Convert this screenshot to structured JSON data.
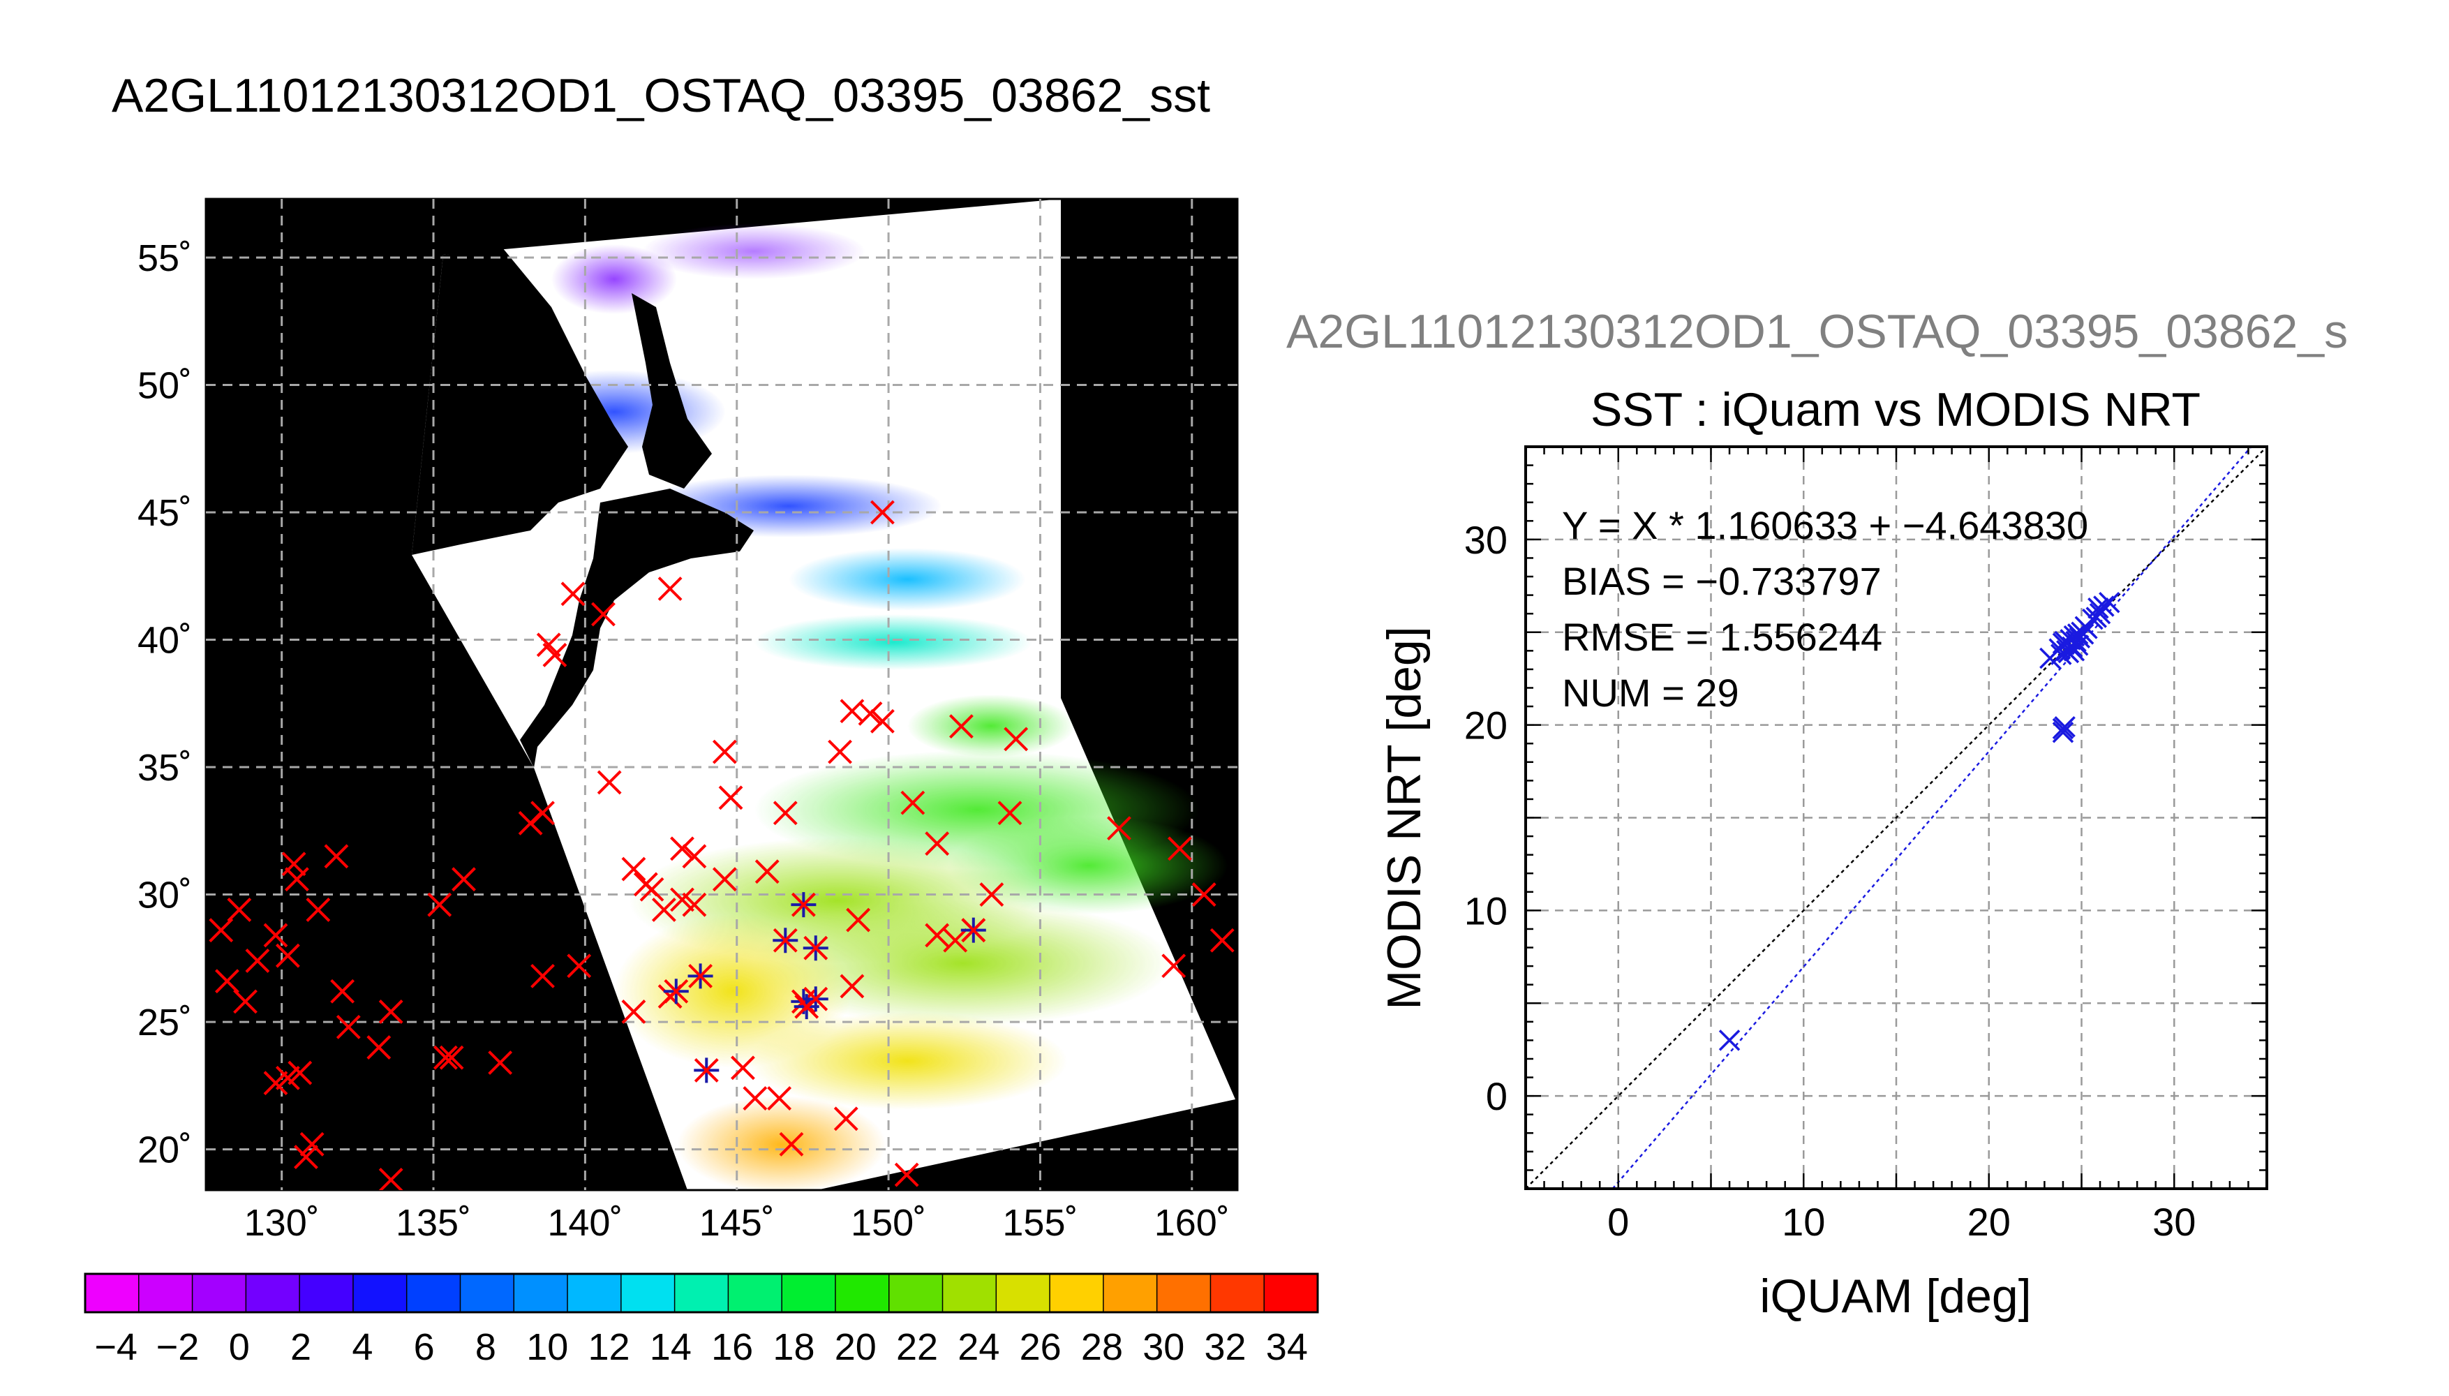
{
  "figure": {
    "main_title": "A2GL11012130312OD1_OSTAQ_03395_03862_sst",
    "faded_title": "A2GL11012130312OD1_OSTAQ_03395_03862_s"
  },
  "map": {
    "lon_min": 127.5,
    "lon_max": 161.5,
    "lat_min": 18.4,
    "lat_max": 57.3,
    "lon_ticks": [
      130,
      135,
      140,
      145,
      150,
      155,
      160
    ],
    "lon_tick_labels": [
      "130˚",
      "135˚",
      "140˚",
      "145˚",
      "150˚",
      "155˚",
      "160˚"
    ],
    "lat_ticks": [
      20,
      25,
      30,
      35,
      40,
      45,
      50,
      55
    ],
    "lat_tick_labels": [
      "20˚",
      "25˚",
      "30˚",
      "35˚",
      "40˚",
      "45˚",
      "50˚",
      "55˚"
    ],
    "background_color": "#000000",
    "marker_color": "#ff0000",
    "match_marker_color": "#1a1aa8",
    "markers": [
      [
        128.0,
        28.6
      ],
      [
        128.6,
        29.4
      ],
      [
        128.2,
        26.6
      ],
      [
        128.8,
        25.8
      ],
      [
        129.2,
        27.4
      ],
      [
        129.8,
        28.4
      ],
      [
        130.4,
        31.2
      ],
      [
        130.5,
        30.6
      ],
      [
        130.2,
        27.6
      ],
      [
        129.8,
        22.6
      ],
      [
        130.2,
        22.8
      ],
      [
        130.6,
        23.0
      ],
      [
        131.0,
        20.2
      ],
      [
        130.8,
        19.7
      ],
      [
        131.2,
        29.4
      ],
      [
        131.8,
        31.5
      ],
      [
        132.0,
        26.2
      ],
      [
        132.2,
        24.8
      ],
      [
        133.2,
        24.0
      ],
      [
        133.6,
        25.4
      ],
      [
        133.6,
        18.8
      ],
      [
        135.2,
        29.6
      ],
      [
        135.4,
        23.6
      ],
      [
        135.6,
        23.6
      ],
      [
        136.0,
        30.6
      ],
      [
        137.2,
        23.4
      ],
      [
        138.6,
        26.8
      ],
      [
        138.2,
        32.8
      ],
      [
        138.6,
        33.2
      ],
      [
        139.8,
        27.2
      ],
      [
        140.8,
        34.4
      ],
      [
        141.6,
        25.4
      ],
      [
        141.6,
        31.0
      ],
      [
        142.0,
        30.4
      ],
      [
        142.2,
        30.2
      ],
      [
        142.6,
        29.4
      ],
      [
        142.8,
        26.0
      ],
      [
        143.2,
        31.8
      ],
      [
        143.2,
        29.8
      ],
      [
        143.6,
        31.5
      ],
      [
        143.6,
        29.6
      ],
      [
        144.6,
        30.6
      ],
      [
        144.6,
        35.6
      ],
      [
        144.8,
        33.8
      ],
      [
        145.2,
        23.2
      ],
      [
        145.6,
        22.0
      ],
      [
        146.0,
        30.9
      ],
      [
        146.6,
        33.2
      ],
      [
        146.4,
        22.0
      ],
      [
        146.8,
        20.2
      ],
      [
        148.8,
        26.4
      ],
      [
        149.0,
        29.0
      ],
      [
        149.4,
        37.1
      ],
      [
        149.8,
        36.8
      ],
      [
        148.8,
        37.2
      ],
      [
        148.6,
        21.2
      ],
      [
        148.4,
        35.6
      ],
      [
        150.6,
        19.0
      ],
      [
        150.8,
        33.6
      ],
      [
        151.6,
        28.4
      ],
      [
        151.6,
        32.0
      ],
      [
        152.2,
        28.2
      ],
      [
        152.4,
        36.6
      ],
      [
        152.8,
        28.6
      ],
      [
        153.4,
        30.0
      ],
      [
        154.0,
        33.2
      ],
      [
        154.2,
        36.1
      ],
      [
        157.6,
        32.6
      ],
      [
        159.4,
        27.2
      ],
      [
        159.6,
        31.8
      ],
      [
        160.4,
        30.0
      ],
      [
        161.0,
        28.2
      ],
      [
        139.0,
        39.4
      ],
      [
        138.8,
        39.8
      ],
      [
        139.6,
        41.8
      ],
      [
        140.6,
        41.0
      ],
      [
        142.8,
        42.0
      ],
      [
        149.8,
        45.0
      ]
    ],
    "matched_markers": [
      [
        143.0,
        26.2
      ],
      [
        143.8,
        26.8
      ],
      [
        144.0,
        23.1
      ],
      [
        146.6,
        28.2
      ],
      [
        147.2,
        29.6
      ],
      [
        147.6,
        27.9
      ],
      [
        147.2,
        25.8
      ],
      [
        147.3,
        25.6
      ],
      [
        152.8,
        28.6
      ],
      [
        147.6,
        25.9
      ]
    ]
  },
  "colorbar": {
    "min": -5,
    "max": 35,
    "step": 2,
    "tick_labels": [
      "−4",
      "−2",
      "0",
      "2",
      "4",
      "6",
      "8",
      "10",
      "12",
      "14",
      "16",
      "18",
      "20",
      "22",
      "24",
      "26",
      "28",
      "30",
      "32",
      "34"
    ],
    "colors": [
      "#ee00ff",
      "#cc00ff",
      "#a300ff",
      "#7300ff",
      "#4400ff",
      "#1212ff",
      "#0040ff",
      "#0068ff",
      "#0090ff",
      "#00b8ff",
      "#00e0f0",
      "#00f0b0",
      "#00f070",
      "#00ee30",
      "#20e800",
      "#60e000",
      "#a0e000",
      "#d8e000",
      "#ffd000",
      "#ffa000",
      "#ff7000",
      "#ff3800",
      "#ff0000"
    ]
  },
  "chart_data": {
    "type": "scatter",
    "title": "SST : iQuam vs MODIS NRT",
    "xlabel": "iQUAM [deg]",
    "ylabel": "MODIS NRT [deg]",
    "xlim": [
      -5,
      35
    ],
    "ylim": [
      -5,
      35
    ],
    "xticks": [
      0,
      10,
      20,
      30
    ],
    "yticks": [
      0,
      10,
      20,
      30
    ],
    "grid": true,
    "annotations": [
      "Y = X * 1.160633 + −4.643830",
      "BIAS = −0.733797",
      "RMSE = 1.556244",
      "NUM = 29"
    ],
    "series_color": "#1a1ae0",
    "fit": {
      "slope": 1.160633,
      "intercept": -4.64383,
      "color": "#1a1ae0"
    },
    "identity_line_color": "#000000",
    "points": [
      [
        6.0,
        3.0
      ],
      [
        24.0,
        19.8
      ],
      [
        24.0,
        19.6
      ],
      [
        24.1,
        19.9
      ],
      [
        23.3,
        23.6
      ],
      [
        23.8,
        24.1
      ],
      [
        24.0,
        24.4
      ],
      [
        24.2,
        24.0
      ],
      [
        24.4,
        24.6
      ],
      [
        24.5,
        24.2
      ],
      [
        24.6,
        24.8
      ],
      [
        24.8,
        24.3
      ],
      [
        24.9,
        24.7
      ],
      [
        25.0,
        25.0
      ],
      [
        24.3,
        23.9
      ],
      [
        24.7,
        24.5
      ],
      [
        25.1,
        24.9
      ],
      [
        25.3,
        25.2
      ],
      [
        25.6,
        25.7
      ],
      [
        25.8,
        25.8
      ],
      [
        26.0,
        26.0
      ],
      [
        26.2,
        26.4
      ],
      [
        26.5,
        26.6
      ],
      [
        25.9,
        26.3
      ],
      [
        24.6,
        24.0
      ],
      [
        24.8,
        24.9
      ],
      [
        25.2,
        25.3
      ],
      [
        24.1,
        24.5
      ],
      [
        23.9,
        23.8
      ]
    ]
  }
}
